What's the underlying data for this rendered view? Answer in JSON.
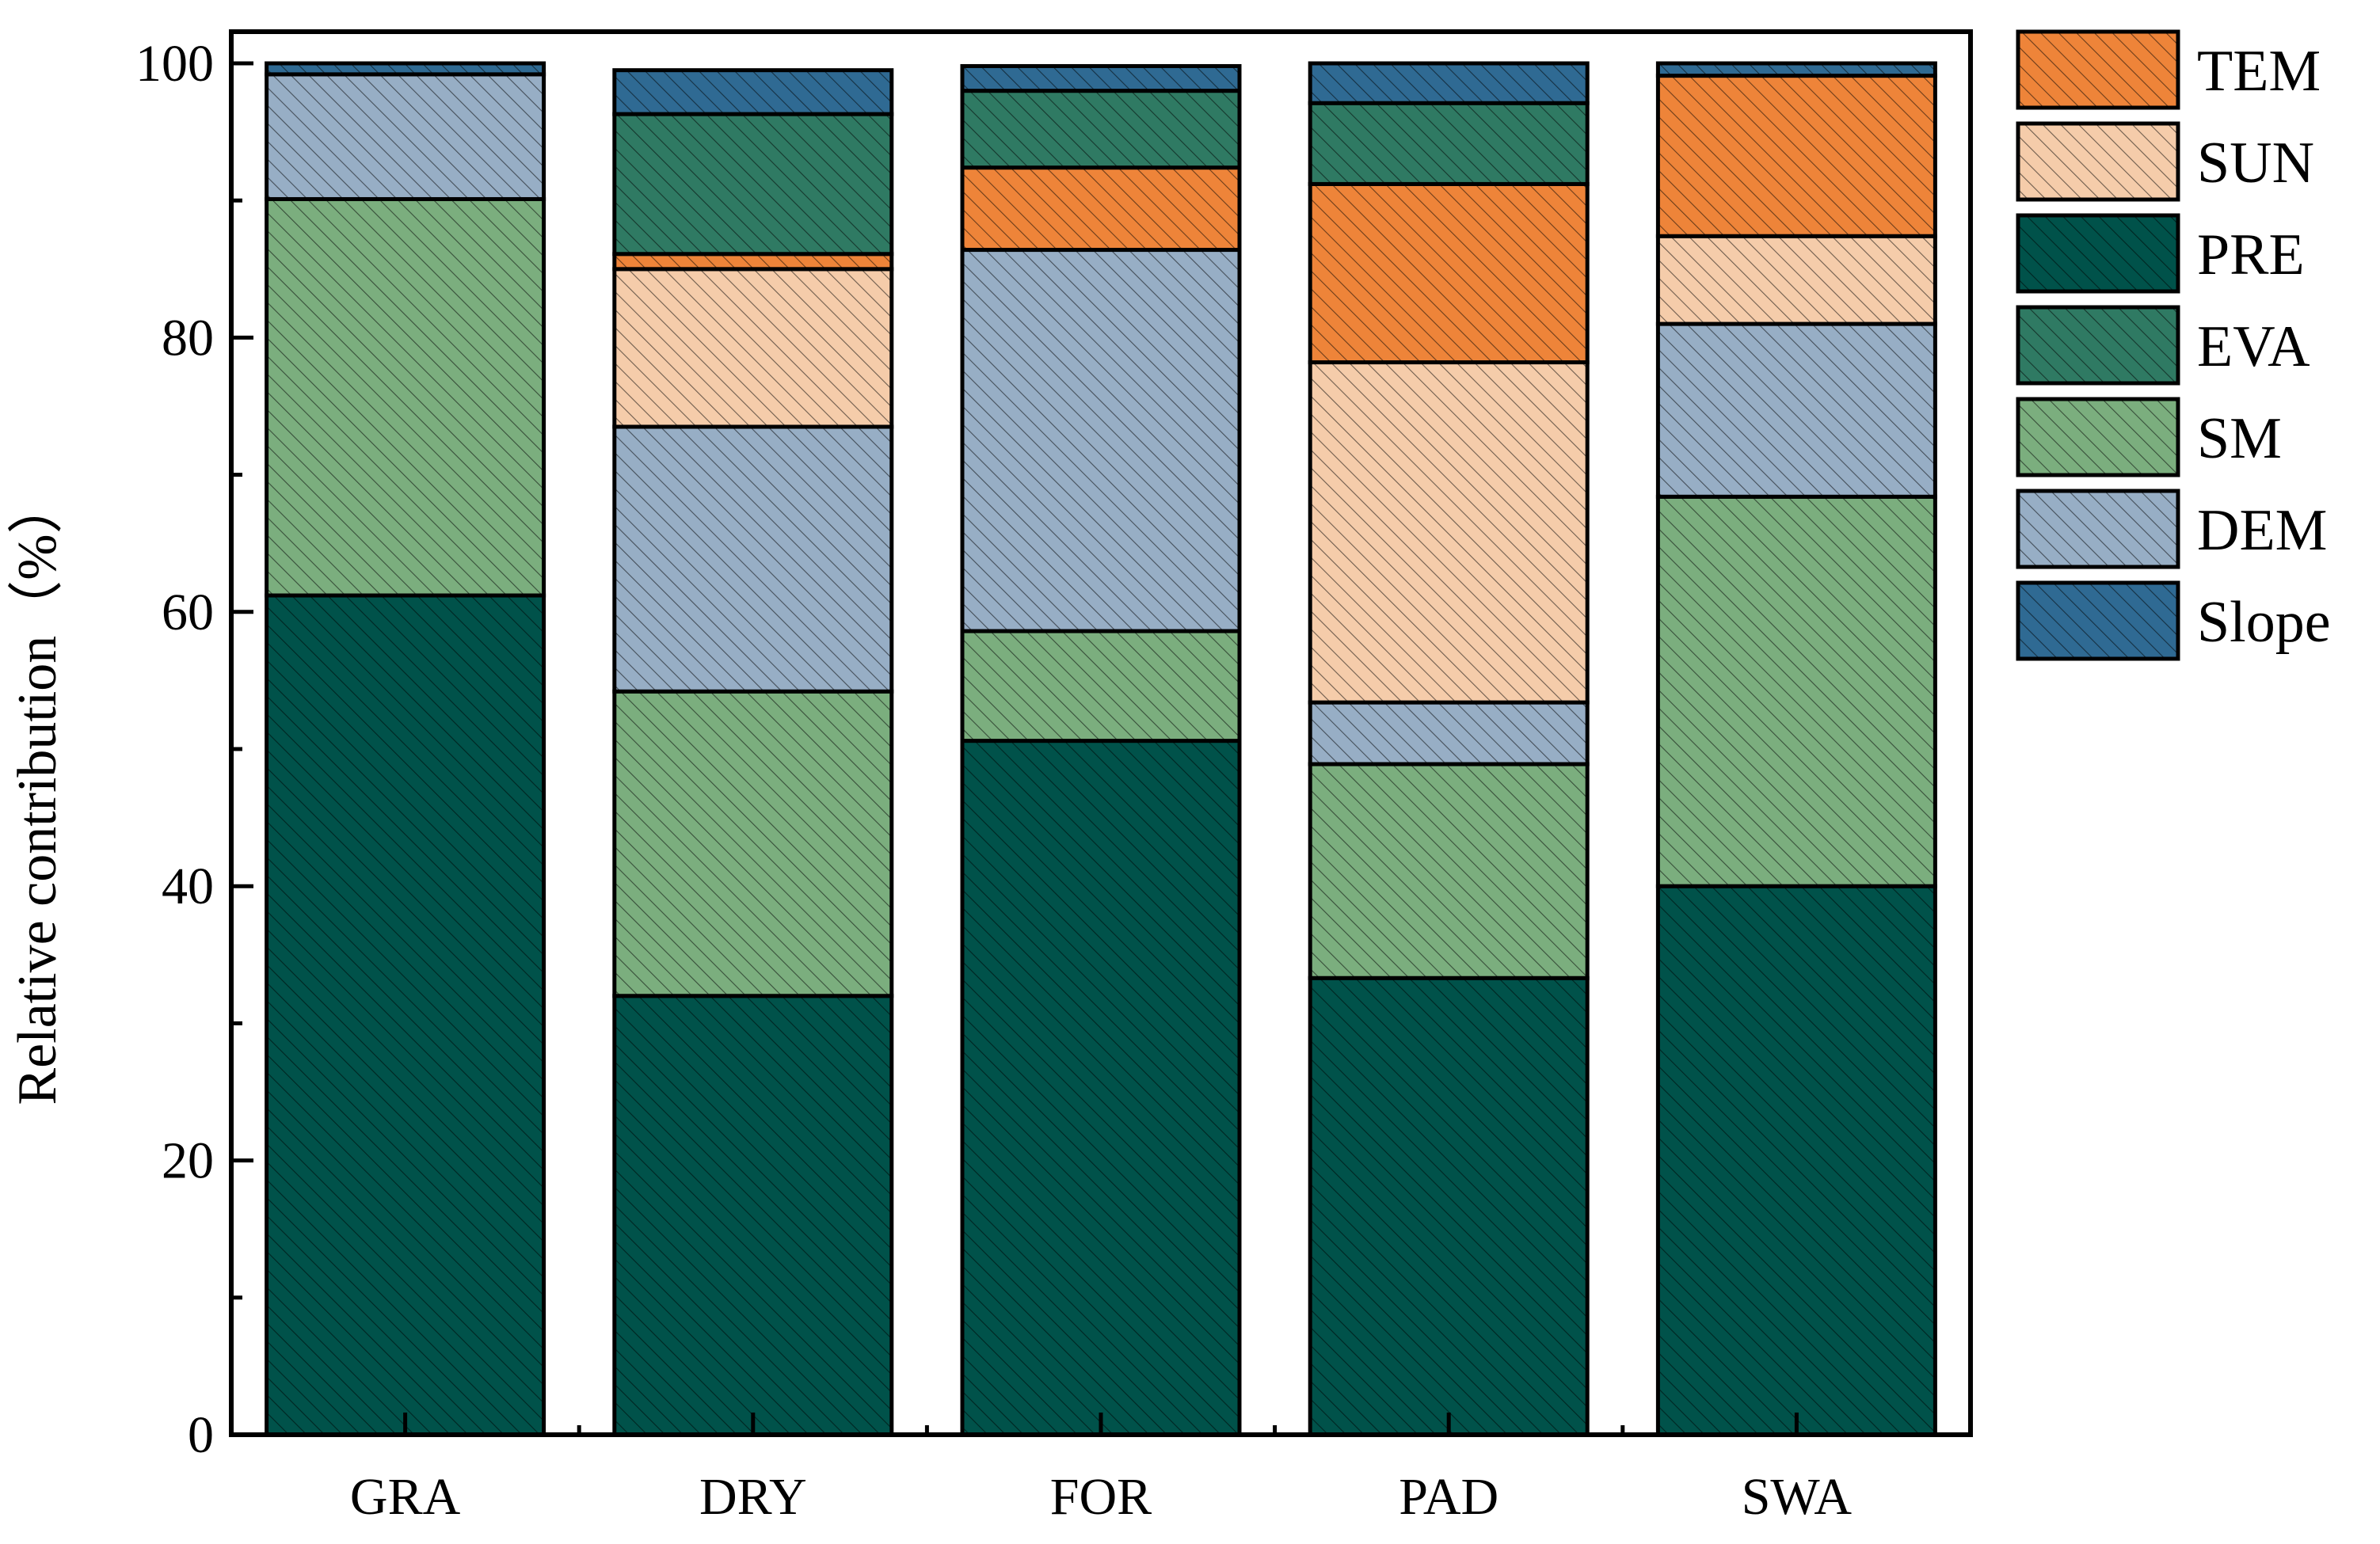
{
  "chart_data": {
    "type": "bar",
    "stacked": true,
    "categories": [
      "GRA",
      "DRY",
      "FOR",
      "PAD",
      "SWA"
    ],
    "ylabel": "Relative contribution（%）",
    "xlabel": "",
    "ylim": [
      0,
      100
    ],
    "yticks": [
      "0",
      "20",
      "40",
      "60",
      "80",
      "100"
    ],
    "legend_position": "right",
    "bar_pattern": "diagonal-hatch",
    "series": [
      {
        "name": "PRE",
        "color": "#00524A",
        "values": [
          61.2,
          32.0,
          50.6,
          33.3,
          40.0
        ]
      },
      {
        "name": "SM",
        "color": "#7BAE7E",
        "values": [
          28.9,
          22.2,
          8.0,
          15.6,
          28.4
        ]
      },
      {
        "name": "DEM",
        "color": "#97AEC5",
        "values": [
          9.1,
          19.3,
          27.8,
          4.5,
          12.6
        ]
      },
      {
        "name": "SUN",
        "color": "#F5CCAA",
        "values": [
          0.0,
          11.5,
          0.0,
          24.8,
          6.4
        ]
      },
      {
        "name": "TEM",
        "color": "#EE8439",
        "values": [
          0.0,
          1.1,
          6.0,
          13.0,
          11.7
        ]
      },
      {
        "name": "EVA",
        "color": "#2F7A63",
        "values": [
          0.0,
          10.2,
          5.6,
          5.9,
          0.0
        ]
      },
      {
        "name": "Slope",
        "color": "#2F6A93",
        "values": [
          0.8,
          3.2,
          1.8,
          2.9,
          0.9
        ]
      }
    ],
    "legend_order": [
      "TEM",
      "SUN",
      "PRE",
      "EVA",
      "SM",
      "DEM",
      "Slope"
    ]
  }
}
